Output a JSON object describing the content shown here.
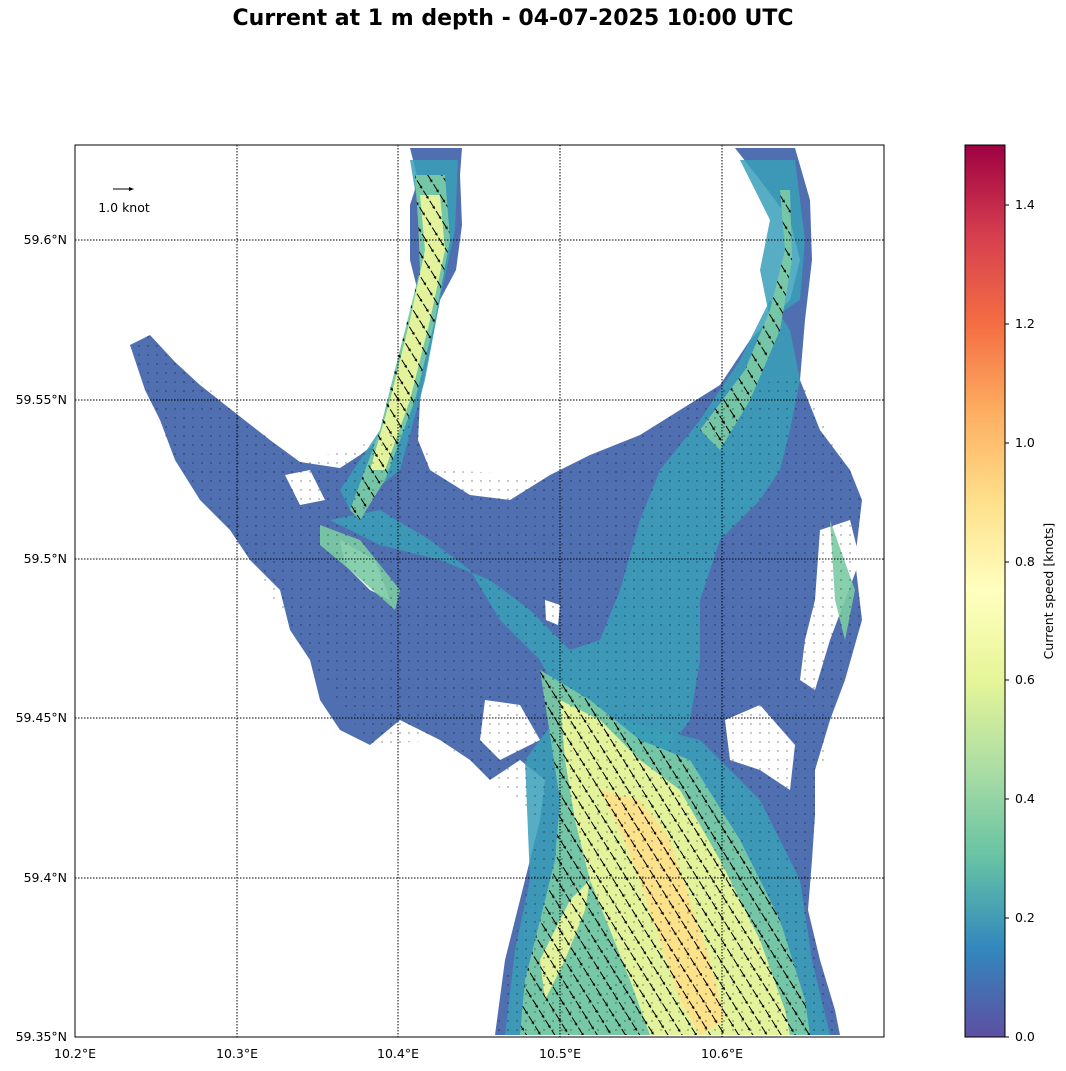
{
  "title": "Current at 1 m depth - 04-07-2025 10:00 UTC",
  "map": {
    "x_ticks": [
      "10.2°E",
      "10.3°E",
      "10.4°E",
      "10.5°E",
      "10.6°E"
    ],
    "y_ticks": [
      "59.35°N",
      "59.4°N",
      "59.45°N",
      "59.5°N",
      "59.55°N",
      "59.6°N"
    ],
    "lon_range": [
      10.2,
      10.7
    ],
    "lat_range": [
      59.35,
      59.63
    ],
    "grid": true,
    "grid_style": "dotted",
    "reference_arrow_label": "1.0 knot"
  },
  "colorbar": {
    "label": "Current speed [knots]",
    "ticks": [
      "0.0",
      "0.2",
      "0.4",
      "0.6",
      "0.8",
      "1.0",
      "1.2",
      "1.4"
    ],
    "range": [
      0,
      1.5
    ],
    "colormap": "Spectral_r",
    "colors": [
      "#5e4fa2",
      "#3288bd",
      "#66c2a5",
      "#abdda4",
      "#e6f598",
      "#ffffbf",
      "#fee08b",
      "#fdae61",
      "#f46d43",
      "#d53e4f",
      "#9e0142"
    ]
  }
}
